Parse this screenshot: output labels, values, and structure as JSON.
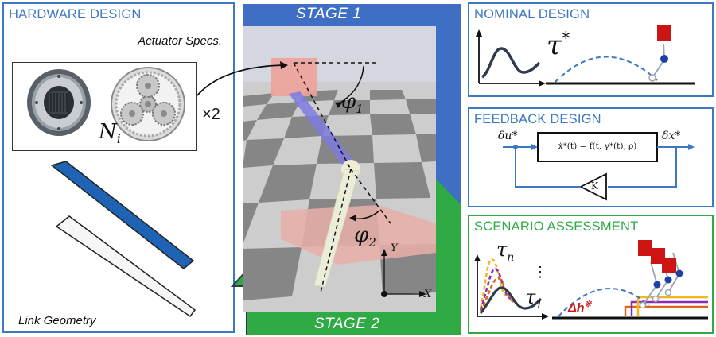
{
  "hardware": {
    "title": "HARDWARE DESIGN",
    "actuator_label": "Actuator Specs.",
    "gear_ratio_label": "N",
    "gear_ratio_sub": "i",
    "multiplier": "×2",
    "link_label": "Link Geometry"
  },
  "stage1": {
    "label": "STAGE 1"
  },
  "stage2": {
    "label": "STAGE 2"
  },
  "sim": {
    "phi1": "φ",
    "phi1_sub": "1",
    "phi2": "φ",
    "phi2_sub": "2",
    "axis_y": "Y",
    "axis_x": "X"
  },
  "nominal": {
    "title": "NOMINAL DESIGN",
    "tau_star": "τ",
    "tau_star_sup": "*"
  },
  "feedback": {
    "title": "FEEDBACK DESIGN",
    "input_label": "δu*",
    "output_label": "δx*",
    "dynamics": "ẋ*(t) = f(t, γ*(t), ρ)",
    "gain": "K"
  },
  "scenario": {
    "title": "SCENARIO ASSESSMENT",
    "tau_n": "τ",
    "tau_n_sub": "n",
    "ellipsis": "⋮",
    "tau_1": "τ",
    "tau_1_sub": "1",
    "delta_h": "Δh",
    "delta_h_sup": "※"
  },
  "colors": {
    "blue": "#3d78c3",
    "stage_blue": "#3f6fc4",
    "green": "#2faa45",
    "dark": "#2f3a4a",
    "red": "#cc1414"
  }
}
